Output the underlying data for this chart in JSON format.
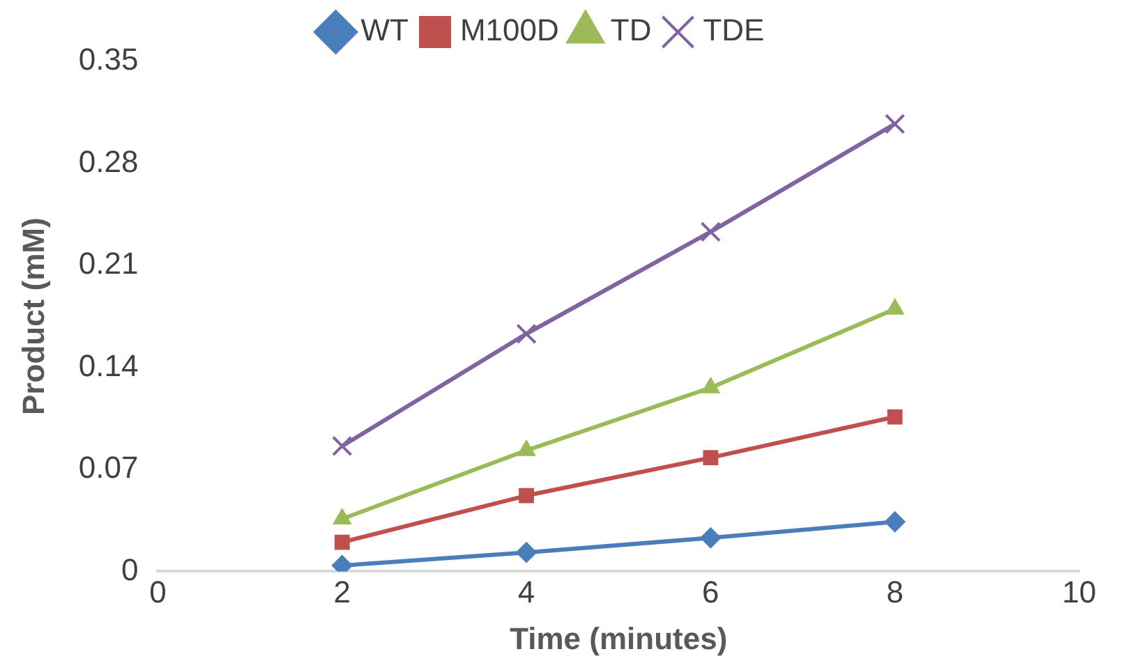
{
  "chart_data": {
    "type": "line",
    "xlabel": "Time (minutes)",
    "ylabel": "Product (mM)",
    "x": [
      2,
      4,
      6,
      8
    ],
    "xlim": [
      0,
      10
    ],
    "xticks": [
      0,
      2,
      4,
      6,
      8,
      10
    ],
    "ylim": [
      0,
      0.35
    ],
    "yticks": [
      0,
      0.07,
      0.14,
      0.21,
      0.28,
      0.35
    ],
    "grid": false,
    "legend": "top",
    "series": [
      {
        "name": "WT",
        "color": "#4a7ebb",
        "marker": "diamond",
        "values": [
          0.004,
          0.013,
          0.023,
          0.034
        ]
      },
      {
        "name": "M100D",
        "color": "#c0504d",
        "marker": "square",
        "values": [
          0.02,
          0.052,
          0.078,
          0.106
        ]
      },
      {
        "name": "TD",
        "color": "#9bbb59",
        "marker": "triangle",
        "values": [
          0.036,
          0.083,
          0.126,
          0.18
        ]
      },
      {
        "name": "TDE",
        "color": "#8064a2",
        "marker": "cross",
        "values": [
          0.086,
          0.163,
          0.233,
          0.307
        ]
      }
    ]
  }
}
